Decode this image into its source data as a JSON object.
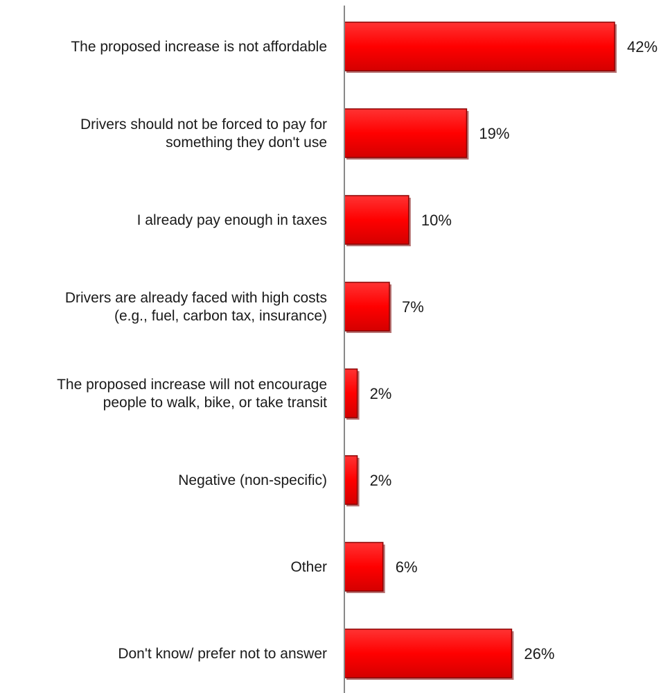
{
  "chart_data": {
    "type": "bar",
    "orientation": "horizontal",
    "categories": [
      [
        "The proposed increase is not affordable"
      ],
      [
        "Drivers should not be forced to pay for",
        "something they don't use"
      ],
      [
        "I already pay enough in taxes"
      ],
      [
        "Drivers are already faced with high costs",
        "(e.g., fuel, carbon tax, insurance)"
      ],
      [
        "The proposed increase will not encourage",
        "people to walk, bike, or take transit"
      ],
      [
        "Negative (non-specific)"
      ],
      [
        "Other"
      ],
      [
        "Don't know/ prefer not to answer"
      ]
    ],
    "values": [
      42,
      19,
      10,
      7,
      2,
      2,
      6,
      26
    ],
    "value_labels": [
      "42%",
      "19%",
      "10%",
      "7%",
      "2%",
      "2%",
      "6%",
      "26%"
    ],
    "unit": "%",
    "title": "",
    "xlabel": "",
    "ylabel": "",
    "xlim": [
      0,
      42
    ],
    "grid": false,
    "legend": "none",
    "bar_color": "#ff0000",
    "bar_edge_color": "#8b0000",
    "axis_color": "#888888"
  }
}
